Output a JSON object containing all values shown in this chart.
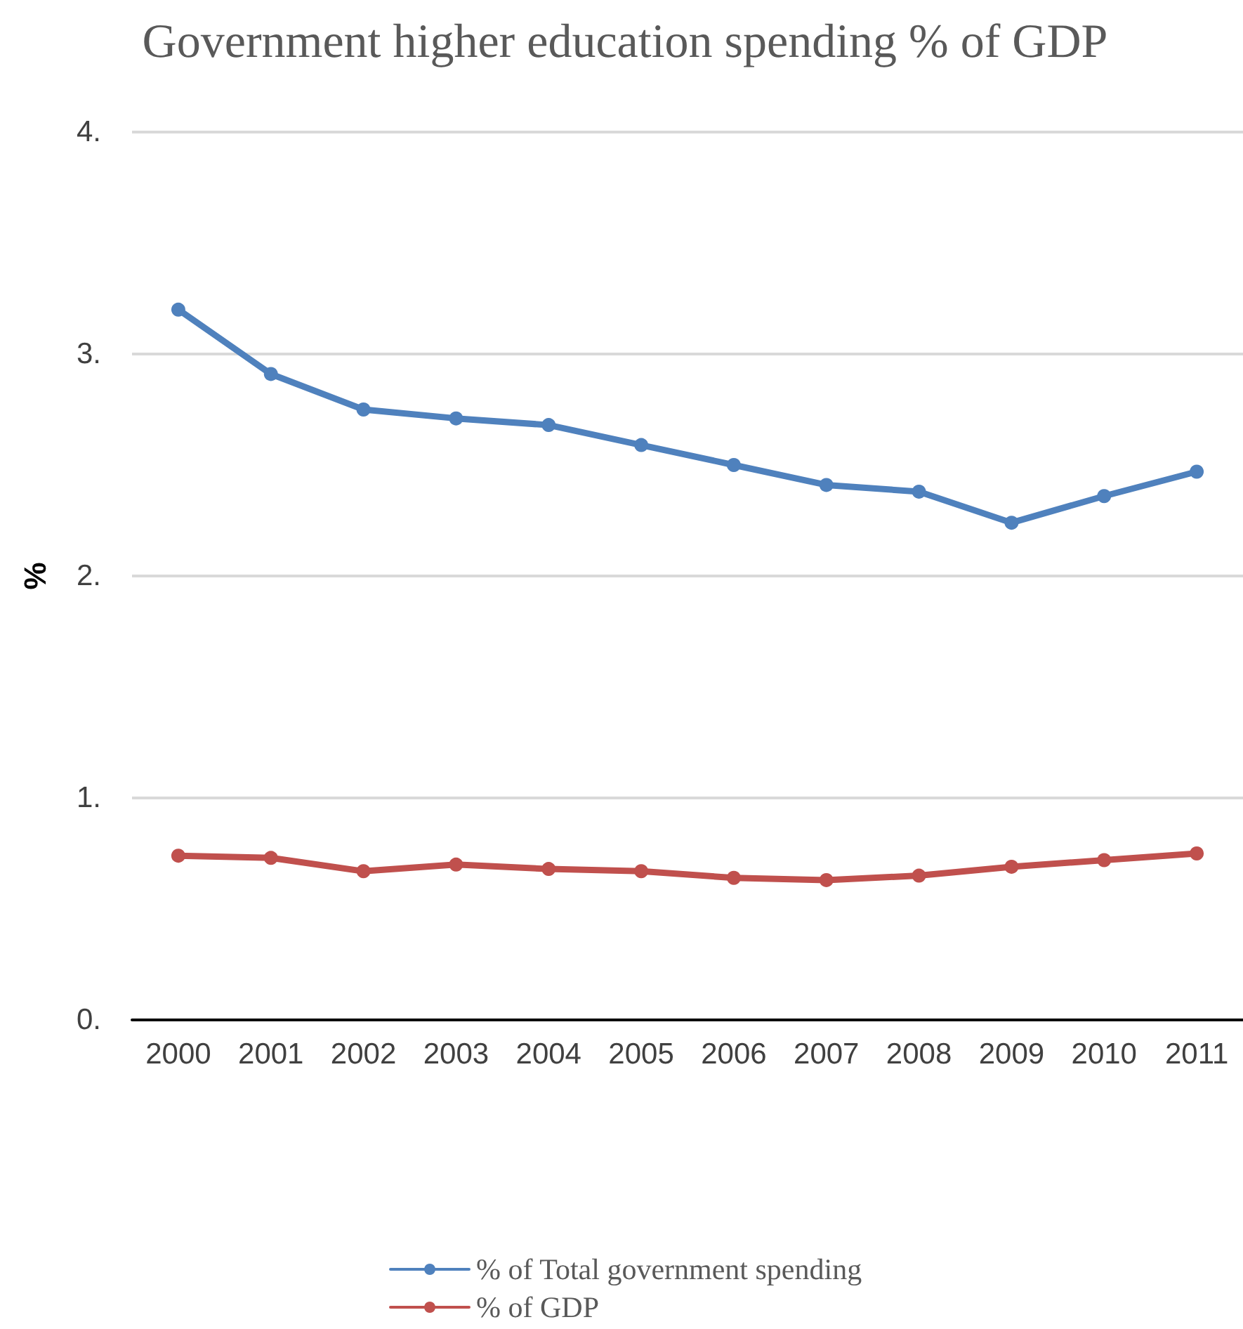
{
  "chart_data": {
    "type": "line",
    "title": "Government higher education spending % of GDP",
    "ylabel": "%",
    "categories": [
      "2000",
      "2001",
      "2002",
      "2003",
      "2004",
      "2005",
      "2006",
      "2007",
      "2008",
      "2009",
      "2010",
      "2011"
    ],
    "series": [
      {
        "name": "% of Total government spending",
        "color": "#4f81bd",
        "values": [
          3.2,
          2.91,
          2.75,
          2.71,
          2.68,
          2.59,
          2.5,
          2.41,
          2.38,
          2.24,
          2.36,
          2.47
        ]
      },
      {
        "name": "% of GDP",
        "color": "#c0504d",
        "values": [
          0.74,
          0.73,
          0.67,
          0.7,
          0.68,
          0.67,
          0.64,
          0.63,
          0.65,
          0.69,
          0.72,
          0.75
        ]
      }
    ],
    "ylim": [
      0,
      4
    ],
    "yticks": [
      {
        "value": 0,
        "label": "0."
      },
      {
        "value": 1,
        "label": "1."
      },
      {
        "value": 2,
        "label": "2."
      },
      {
        "value": 3,
        "label": "3."
      },
      {
        "value": 4,
        "label": "4."
      }
    ],
    "grid": "y",
    "legend": "bottom",
    "marker": "circle",
    "line_style": "solid"
  }
}
